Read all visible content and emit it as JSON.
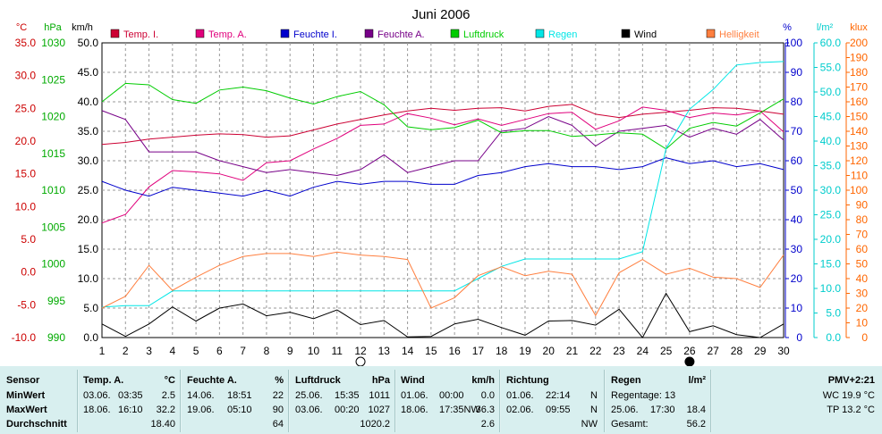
{
  "chart_data": {
    "type": "line",
    "title": "Juni 2006",
    "x": [
      1,
      2,
      3,
      4,
      5,
      6,
      7,
      8,
      9,
      10,
      11,
      12,
      13,
      14,
      15,
      16,
      17,
      18,
      19,
      20,
      21,
      22,
      23,
      24,
      25,
      26,
      27,
      28,
      29,
      30
    ],
    "axes": {
      "celsius": {
        "unit": "°C",
        "ticks": [
          "35.0",
          "30.0",
          "25.0",
          "20.0",
          "15.0",
          "10.0",
          "5.0",
          "0.0",
          "-5.0",
          "-10.0"
        ],
        "range": [
          -10,
          35
        ],
        "color": "#cc0000"
      },
      "hpa": {
        "unit": "hPa",
        "ticks": [
          "1030",
          "1025",
          "1020",
          "1015",
          "1010",
          "1005",
          "1000",
          "995",
          "990"
        ],
        "range": [
          990,
          1030
        ],
        "color": "#00aa00"
      },
      "kmh": {
        "unit": "km/h",
        "ticks": [
          "50.0",
          "45.0",
          "40.0",
          "35.0",
          "30.0",
          "25.0",
          "20.0",
          "15.0",
          "10.0",
          "5.0",
          "0.0"
        ],
        "range": [
          0,
          50
        ],
        "color": "#000000"
      },
      "percent": {
        "unit": "%",
        "ticks": [
          "100",
          "90",
          "80",
          "70",
          "60",
          "50",
          "40",
          "30",
          "20",
          "10",
          "0"
        ],
        "range": [
          0,
          100
        ],
        "color": "#0000cc"
      },
      "rain": {
        "unit": "l/m²",
        "ticks": [
          "60.0",
          "55.0",
          "50.0",
          "45.0",
          "40.0",
          "35.0",
          "30.0",
          "25.0",
          "20.0",
          "15.0",
          "10.0",
          "5.0",
          "0.0"
        ],
        "range": [
          0,
          60
        ],
        "color": "#00cccc"
      },
      "klux": {
        "unit": "klux",
        "ticks": [
          "200",
          "190",
          "180",
          "170",
          "160",
          "150",
          "140",
          "130",
          "120",
          "110",
          "100",
          "90",
          "80",
          "70",
          "60",
          "50",
          "40",
          "30",
          "20",
          "10",
          "0"
        ],
        "range": [
          0,
          200
        ],
        "color": "#ff6600"
      }
    },
    "series": [
      {
        "name": "Temp. I.",
        "color": "#cc0033",
        "axis": "celsius",
        "values": [
          19.5,
          19.8,
          20.3,
          20.6,
          20.9,
          21.1,
          21.0,
          20.6,
          20.8,
          21.7,
          22.6,
          23.3,
          24.0,
          24.6,
          25.0,
          24.7,
          25.0,
          25.1,
          24.6,
          25.3,
          25.6,
          24.1,
          23.6,
          24.1,
          24.4,
          24.7,
          25.1,
          25.0,
          24.6,
          24.1
        ]
      },
      {
        "name": "Temp. A.",
        "color": "#e0007c",
        "axis": "celsius",
        "values": [
          7.5,
          8.8,
          13.0,
          15.5,
          15.3,
          15.0,
          14.0,
          16.7,
          17.0,
          18.8,
          20.4,
          22.4,
          22.6,
          24.2,
          23.5,
          22.5,
          23.4,
          22.4,
          23.3,
          24.2,
          24.4,
          21.8,
          23.1,
          25.2,
          24.7,
          23.6,
          24.3,
          24.0,
          24.6,
          21.4
        ]
      },
      {
        "name": "Feuchte I.",
        "color": "#0000cc",
        "axis": "percent",
        "values": [
          53,
          50,
          48,
          51,
          50,
          49,
          48,
          50,
          48,
          51,
          53,
          52,
          53,
          53,
          52,
          52,
          55,
          56,
          58,
          59,
          58,
          58,
          57,
          58,
          61,
          59,
          60,
          58,
          59,
          57
        ]
      },
      {
        "name": "Feuchte A.",
        "color": "#770088",
        "axis": "percent",
        "values": [
          77,
          74,
          63,
          63,
          63,
          60,
          58,
          56,
          57,
          56,
          55,
          57,
          62,
          56,
          58,
          60,
          60,
          70,
          71,
          75,
          72,
          65,
          70,
          71,
          72,
          68,
          71,
          69,
          74,
          67
        ]
      },
      {
        "name": "Luftdruck",
        "color": "#00cc00",
        "axis": "hpa",
        "values": [
          1022,
          1024.5,
          1024.3,
          1022.3,
          1021.8,
          1023.6,
          1024,
          1023.5,
          1022.5,
          1021.7,
          1022.7,
          1023.4,
          1021.6,
          1018.6,
          1018.2,
          1018.5,
          1019.5,
          1017.8,
          1018.1,
          1018.1,
          1017.3,
          1017.5,
          1017.8,
          1017.6,
          1015.6,
          1018.4,
          1019.2,
          1018.7,
          1020.5,
          1022.4
        ]
      },
      {
        "name": "Regen",
        "color": "#00e6e6",
        "axis": "rain",
        "values": [
          6.2,
          6.5,
          6.5,
          9.5,
          9.5,
          9.5,
          9.5,
          9.5,
          9.5,
          9.5,
          9.5,
          9.5,
          9.5,
          9.5,
          9.5,
          9.5,
          12.0,
          14.5,
          16.0,
          16.0,
          16.0,
          16.0,
          16.0,
          17.5,
          38.5,
          46.5,
          50.5,
          55.5,
          56.0,
          56.2
        ]
      },
      {
        "name": "Wind",
        "color": "#000000",
        "axis": "kmh",
        "values": [
          2.3,
          0.2,
          2.3,
          5.2,
          2.8,
          5.0,
          5.7,
          3.7,
          4.3,
          3.2,
          4.7,
          2.2,
          2.9,
          0.1,
          0.2,
          2.3,
          3.1,
          1.7,
          0.4,
          2.8,
          2.9,
          2.1,
          4.8,
          0.0,
          7.5,
          1.0,
          2.0,
          0.5,
          0.0,
          2.3
        ]
      },
      {
        "name": "Helligkeit",
        "color": "#ff7f3f",
        "axis": "klux",
        "values": [
          20,
          28,
          49,
          32,
          41,
          49,
          55,
          57,
          57,
          55,
          58,
          56,
          55,
          53,
          20,
          27,
          42,
          48,
          42,
          45,
          43,
          15,
          44,
          53,
          43,
          47,
          41,
          40,
          34,
          56
        ]
      }
    ],
    "moon": {
      "full_moon_day": 12,
      "new_moon_day": 26
    }
  },
  "stats": {
    "sensor": {
      "header": "Sensor",
      "min": "MinWert",
      "max": "MaxWert",
      "avg": "Durchschnitt"
    },
    "temp": {
      "header": "Temp. A.",
      "unit": "°C",
      "min_date": "03.06.",
      "min_time": "03:35",
      "min_val": "2.5",
      "max_date": "18.06.",
      "max_time": "16:10",
      "max_val": "32.2",
      "avg": "18.40"
    },
    "humidity": {
      "header": "Feuchte A.",
      "unit": "%",
      "min_date": "14.06.",
      "min_time": "18:51",
      "min_val": "22",
      "max_date": "19.06.",
      "max_time": "05:10",
      "max_val": "90",
      "avg": "64"
    },
    "pressure": {
      "header": "Luftdruck",
      "unit": "hPa",
      "min_date": "25.06.",
      "min_time": "15:35",
      "min_val": "1011",
      "max_date": "03.06.",
      "max_time": "00:20",
      "max_val": "1027",
      "avg": "1020.2"
    },
    "wind": {
      "header": "Wind",
      "unit": "km/h",
      "min_date": "01.06.",
      "min_time": "00:00",
      "min_val": "0.0",
      "max_date": "18.06.",
      "max_time": "17:35NW",
      "max_val": "36.3",
      "avg": "2.6"
    },
    "direction": {
      "header": "Richtung",
      "min_date": "01.06.",
      "min_time": "22:14",
      "min_val": "N",
      "max_date": "02.06.",
      "max_time": "09:55",
      "max_val": "N",
      "avg": "NW"
    },
    "rain": {
      "header": "Regen",
      "unit": "l/m²",
      "days_label": "Regentage: 13",
      "max_date": "25.06.",
      "max_time": "17:30",
      "max_val": "18.4",
      "total_label": "Gesamt:",
      "total": "56.2"
    },
    "extra": {
      "pmv": "PMV+2:21",
      "wc": "WC 19.9 °C",
      "tp": "TP 13.2 °C"
    }
  }
}
